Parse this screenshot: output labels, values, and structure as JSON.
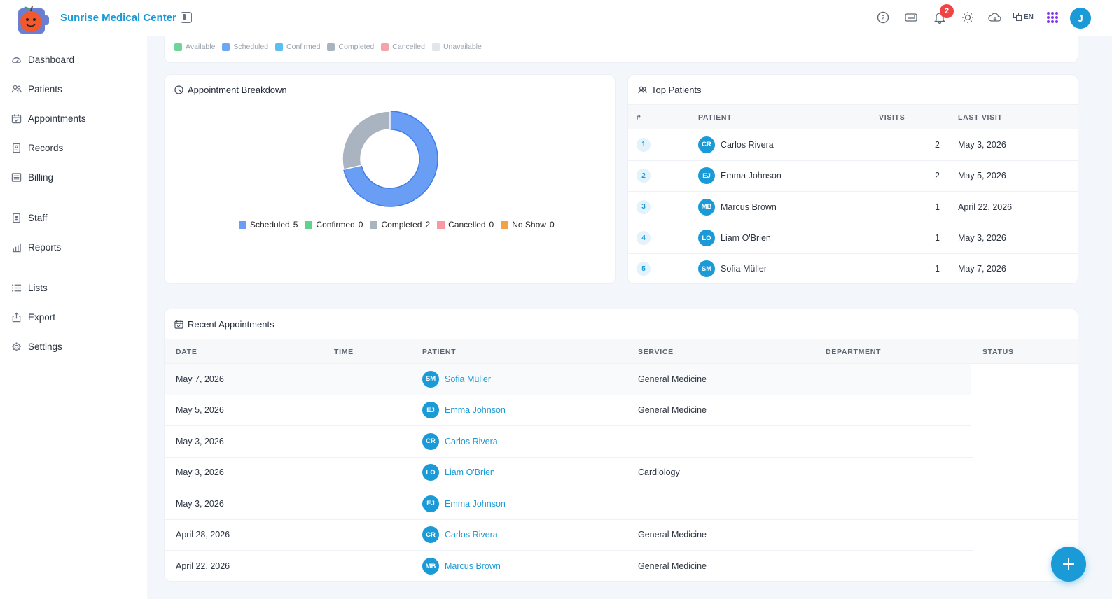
{
  "app": {
    "name": "Sunrise Medical Center",
    "language": "EN",
    "user_initial": "J",
    "notification_count": "2"
  },
  "sidebar": {
    "items": [
      {
        "label": "Dashboard",
        "icon": "dashboard-icon"
      },
      {
        "label": "Patients",
        "icon": "patients-icon"
      },
      {
        "label": "Appointments",
        "icon": "calendar-icon"
      },
      {
        "label": "Records",
        "icon": "records-icon"
      },
      {
        "label": "Billing",
        "icon": "billing-icon"
      },
      {
        "label": "Staff",
        "icon": "staff-icon"
      },
      {
        "label": "Reports",
        "icon": "reports-icon"
      },
      {
        "label": "Lists",
        "icon": "lists-icon"
      },
      {
        "label": "Export",
        "icon": "export-icon"
      },
      {
        "label": "Settings",
        "icon": "gear-icon"
      }
    ]
  },
  "status_legend": [
    {
      "label": "Available",
      "color": "#6fd49a"
    },
    {
      "label": "Scheduled",
      "color": "#6aa8f5"
    },
    {
      "label": "Confirmed",
      "color": "#5bc0ee"
    },
    {
      "label": "Completed",
      "color": "#aab4bf"
    },
    {
      "label": "Cancelled",
      "color": "#f3a3aa"
    },
    {
      "label": "Unavailable",
      "color": "#e2e5ea"
    }
  ],
  "breakdown": {
    "title": "Appointment Breakdown",
    "chart_data": {
      "type": "pie",
      "categories": [
        "Scheduled",
        "Confirmed",
        "Completed",
        "Cancelled",
        "No Show"
      ],
      "values": [
        5,
        0,
        2,
        0,
        0
      ],
      "colors": [
        "#6a9ef5",
        "#5fd38b",
        "#aab4c0",
        "#f79aa1",
        "#f7a04a"
      ],
      "legend": "bottom"
    }
  },
  "top_patients": {
    "title": "Top Patients",
    "headers": [
      "#",
      "PATIENT",
      "VISITS",
      "LAST VISIT"
    ],
    "rows": [
      {
        "rank": "1",
        "initials": "CR",
        "name": "Carlos Rivera",
        "visits": "2",
        "last_visit": "May 3, 2026"
      },
      {
        "rank": "2",
        "initials": "EJ",
        "name": "Emma Johnson",
        "visits": "2",
        "last_visit": "May 5, 2026"
      },
      {
        "rank": "3",
        "initials": "MB",
        "name": "Marcus Brown",
        "visits": "1",
        "last_visit": "April 22, 2026"
      },
      {
        "rank": "4",
        "initials": "LO",
        "name": "Liam O'Brien",
        "visits": "1",
        "last_visit": "May 3, 2026"
      },
      {
        "rank": "5",
        "initials": "SM",
        "name": "Sofia Müller",
        "visits": "1",
        "last_visit": "May 7, 2026"
      }
    ]
  },
  "recent": {
    "title": "Recent Appointments",
    "headers": [
      "DATE",
      "TIME",
      "PATIENT",
      "SERVICE",
      "DEPARTMENT",
      "STATUS"
    ],
    "rows": [
      {
        "date": "May 7, 2026",
        "initials": "SM",
        "patient": "Sofia Müller",
        "service": "General Medicine"
      },
      {
        "date": "May 5, 2026",
        "initials": "EJ",
        "patient": "Emma Johnson",
        "service": "General Medicine"
      },
      {
        "date": "May 3, 2026",
        "initials": "CR",
        "patient": "Carlos Rivera",
        "service": ""
      },
      {
        "date": "May 3, 2026",
        "initials": "LO",
        "patient": "Liam O'Brien",
        "service": "Cardiology"
      },
      {
        "date": "May 3, 2026",
        "initials": "EJ",
        "patient": "Emma Johnson",
        "service": ""
      },
      {
        "date": "April 28, 2026",
        "initials": "CR",
        "patient": "Carlos Rivera",
        "service": "General Medicine"
      },
      {
        "date": "April 22, 2026",
        "initials": "MB",
        "patient": "Marcus Brown",
        "service": "General Medicine"
      }
    ]
  }
}
